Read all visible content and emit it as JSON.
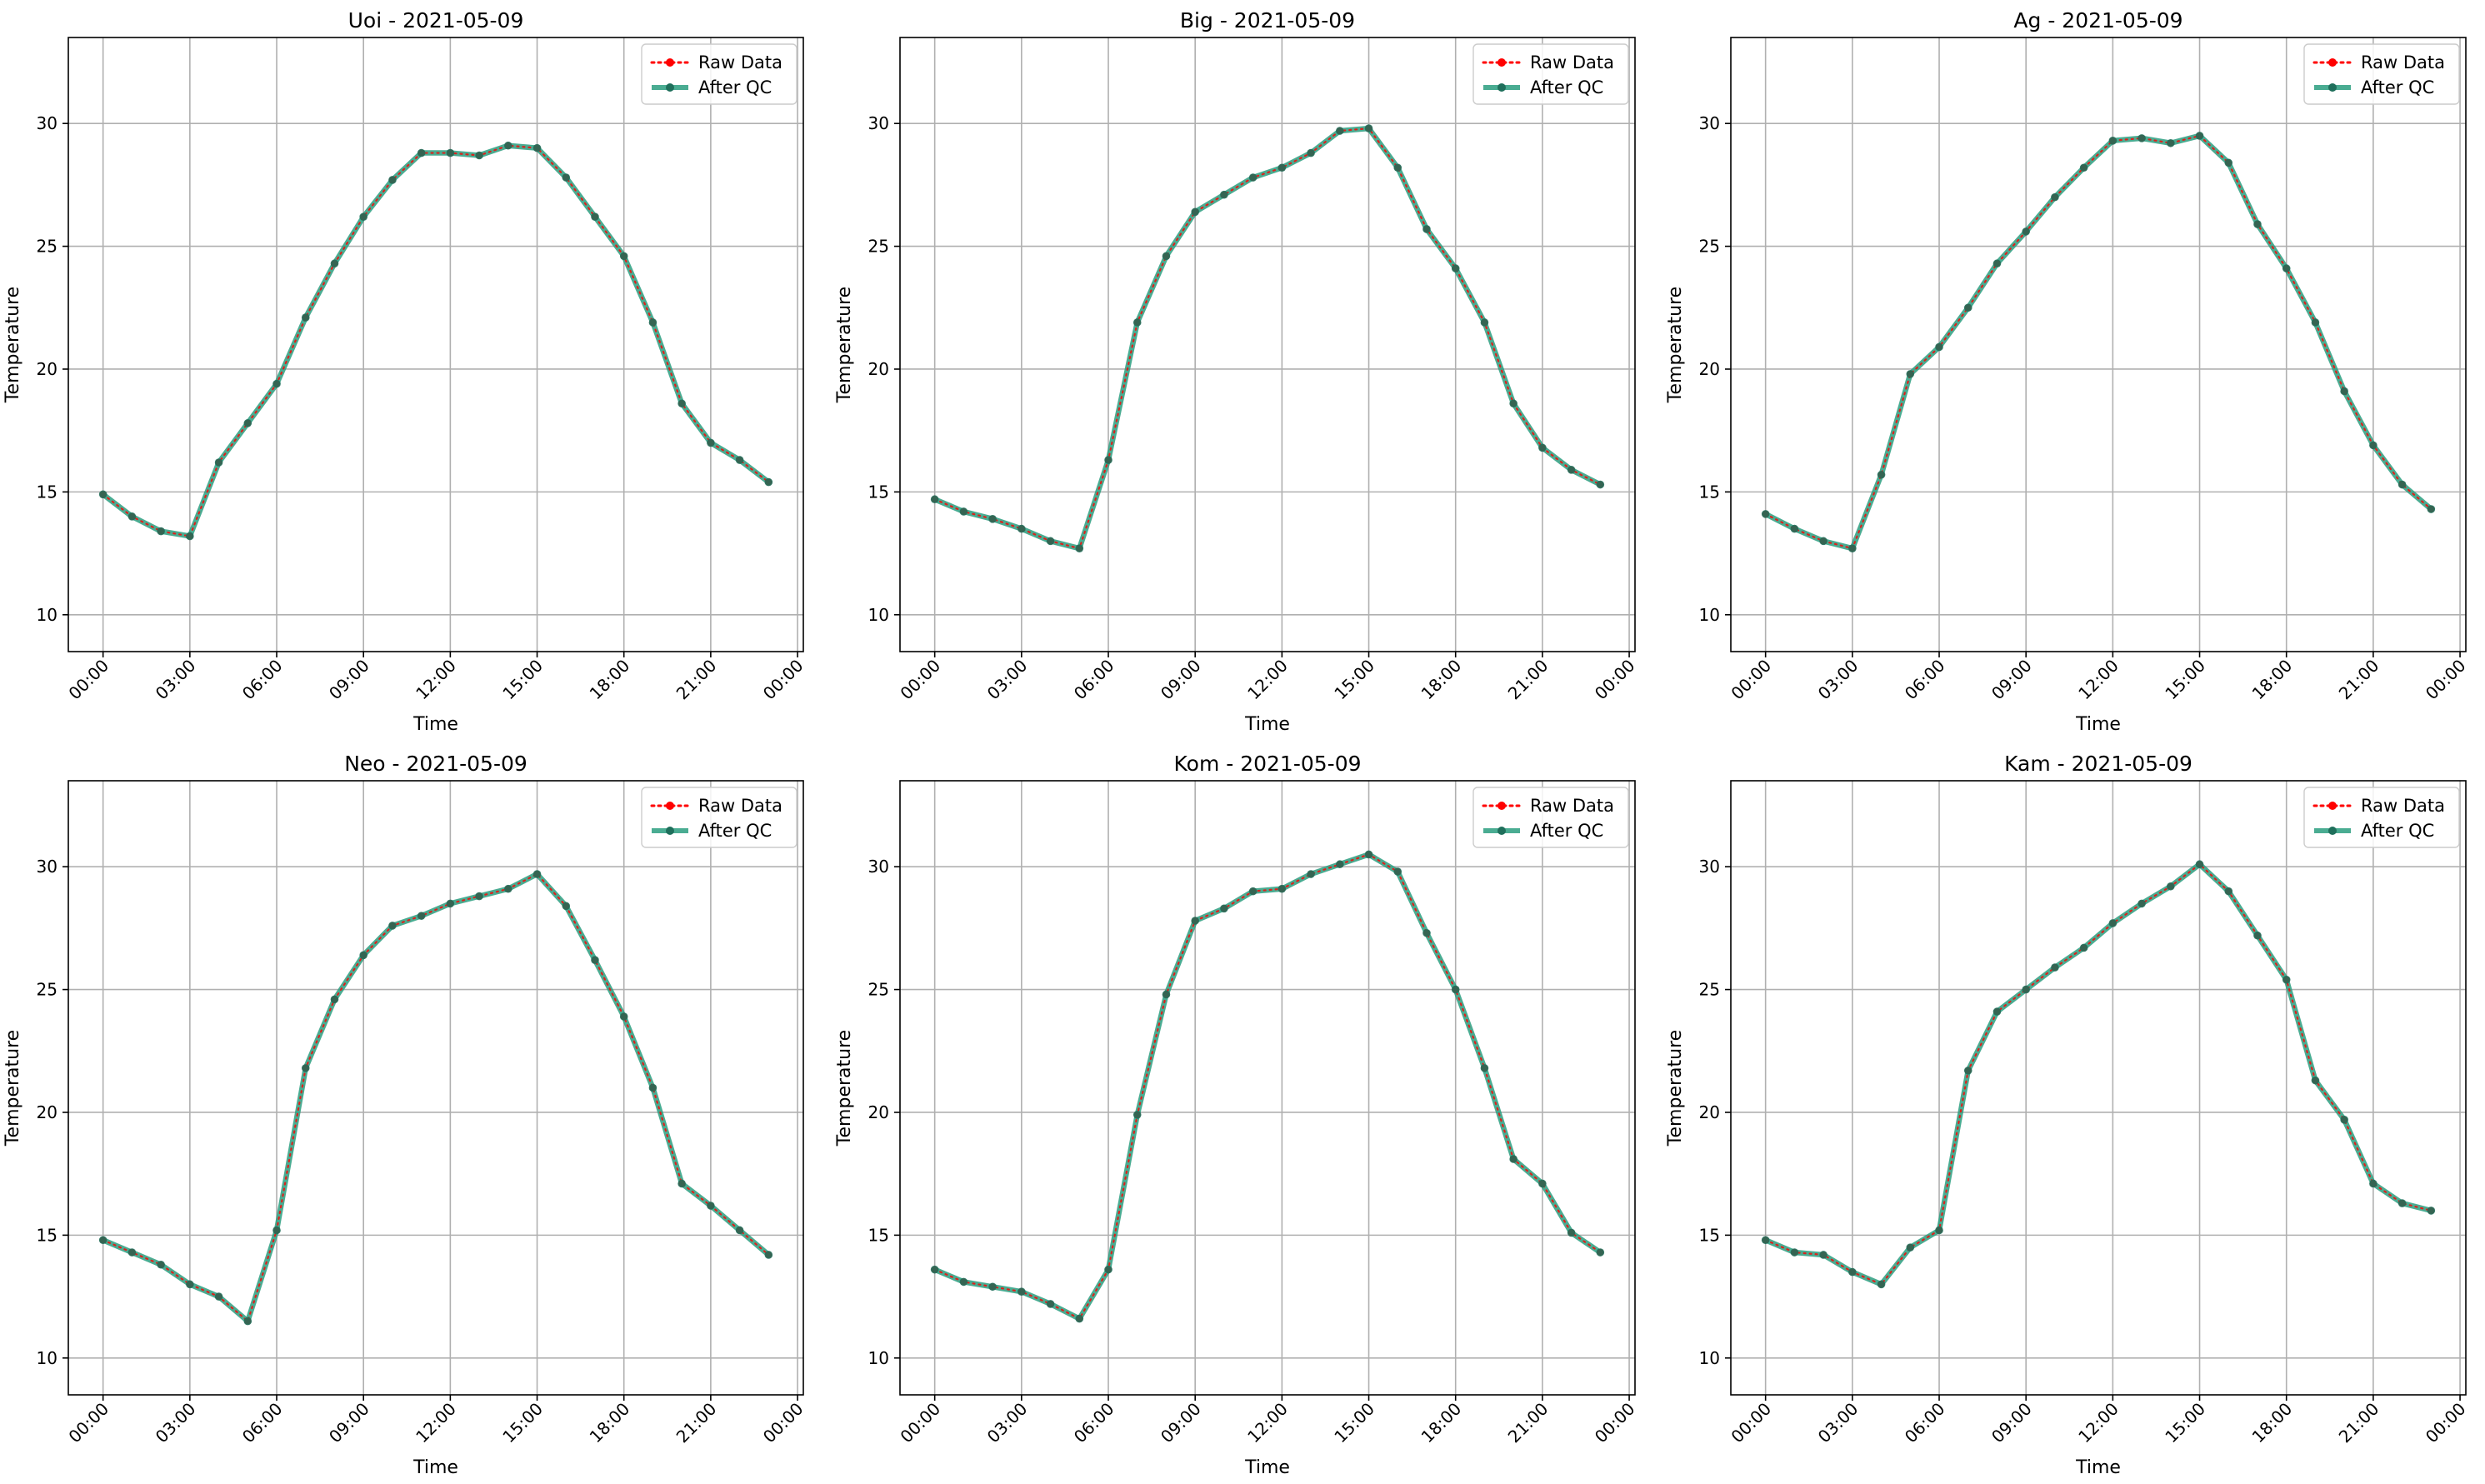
{
  "colors": {
    "raw": "#ff0000",
    "qc": "#2a9d7f",
    "qc_marker": "#1f6f5b",
    "grid": "#b0b0b0",
    "axes": "#000000"
  },
  "chart_data": [
    {
      "type": "line",
      "title": "Uoi - 2021-05-09",
      "xlabel": "Time",
      "ylabel": "Temperature",
      "xticks": [
        "00:00",
        "03:00",
        "06:00",
        "09:00",
        "12:00",
        "15:00",
        "18:00",
        "21:00",
        "00:00"
      ],
      "yticks": [
        10,
        15,
        20,
        25,
        30
      ],
      "xlim_hours": [
        -1.2,
        24.2
      ],
      "ylim": [
        8.5,
        33.5
      ],
      "grid": true,
      "legend": "top-right",
      "x_hours": [
        0,
        1,
        2,
        3,
        4,
        5,
        6,
        7,
        8,
        9,
        10,
        11,
        12,
        13,
        14,
        15,
        16,
        17,
        18,
        19,
        20,
        21,
        22,
        23
      ],
      "series": [
        {
          "name": "Raw Data",
          "values": [
            14.9,
            14.0,
            13.4,
            13.2,
            16.2,
            17.8,
            19.4,
            22.1,
            24.3,
            26.2,
            27.7,
            28.8,
            28.8,
            28.7,
            29.1,
            29.0,
            27.8,
            26.2,
            24.6,
            21.9,
            18.6,
            17.0,
            16.3,
            15.4
          ]
        },
        {
          "name": "After QC",
          "values": [
            14.9,
            14.0,
            13.4,
            13.2,
            16.2,
            17.8,
            19.4,
            22.1,
            24.3,
            26.2,
            27.7,
            28.8,
            28.8,
            28.7,
            29.1,
            29.0,
            27.8,
            26.2,
            24.6,
            21.9,
            18.6,
            17.0,
            16.3,
            15.4
          ]
        }
      ]
    },
    {
      "type": "line",
      "title": "Big - 2021-05-09",
      "xlabel": "Time",
      "ylabel": "Temperature",
      "xticks": [
        "00:00",
        "03:00",
        "06:00",
        "09:00",
        "12:00",
        "15:00",
        "18:00",
        "21:00",
        "00:00"
      ],
      "yticks": [
        10,
        15,
        20,
        25,
        30
      ],
      "xlim_hours": [
        -1.2,
        24.2
      ],
      "ylim": [
        8.5,
        33.5
      ],
      "grid": true,
      "legend": "top-right",
      "x_hours": [
        0,
        1,
        2,
        3,
        4,
        5,
        6,
        7,
        8,
        9,
        10,
        11,
        12,
        13,
        14,
        15,
        16,
        17,
        18,
        19,
        20,
        21,
        22,
        23
      ],
      "series": [
        {
          "name": "Raw Data",
          "values": [
            14.7,
            14.2,
            13.9,
            13.5,
            13.0,
            12.7,
            16.3,
            21.9,
            24.6,
            26.4,
            27.1,
            27.8,
            28.2,
            28.8,
            29.7,
            29.8,
            28.2,
            25.7,
            24.1,
            21.9,
            18.6,
            16.8,
            15.9,
            15.3
          ]
        },
        {
          "name": "After QC",
          "values": [
            14.7,
            14.2,
            13.9,
            13.5,
            13.0,
            12.7,
            16.3,
            21.9,
            24.6,
            26.4,
            27.1,
            27.8,
            28.2,
            28.8,
            29.7,
            29.8,
            28.2,
            25.7,
            24.1,
            21.9,
            18.6,
            16.8,
            15.9,
            15.3
          ]
        }
      ]
    },
    {
      "type": "line",
      "title": "Ag - 2021-05-09",
      "xlabel": "Time",
      "ylabel": "Temperature",
      "xticks": [
        "00:00",
        "03:00",
        "06:00",
        "09:00",
        "12:00",
        "15:00",
        "18:00",
        "21:00",
        "00:00"
      ],
      "yticks": [
        10,
        15,
        20,
        25,
        30
      ],
      "xlim_hours": [
        -1.2,
        24.2
      ],
      "ylim": [
        8.5,
        33.5
      ],
      "grid": true,
      "legend": "top-right",
      "x_hours": [
        0,
        1,
        2,
        3,
        4,
        5,
        6,
        7,
        8,
        9,
        10,
        11,
        12,
        13,
        14,
        15,
        16,
        17,
        18,
        19,
        20,
        21,
        22,
        23
      ],
      "series": [
        {
          "name": "Raw Data",
          "values": [
            14.1,
            13.5,
            13.0,
            12.7,
            15.7,
            19.8,
            20.9,
            22.5,
            24.3,
            25.6,
            27.0,
            28.2,
            29.3,
            29.4,
            29.2,
            29.5,
            28.4,
            25.9,
            24.1,
            21.9,
            19.1,
            16.9,
            15.3,
            14.3
          ]
        },
        {
          "name": "After QC",
          "values": [
            14.1,
            13.5,
            13.0,
            12.7,
            15.7,
            19.8,
            20.9,
            22.5,
            24.3,
            25.6,
            27.0,
            28.2,
            29.3,
            29.4,
            29.2,
            29.5,
            28.4,
            25.9,
            24.1,
            21.9,
            19.1,
            16.9,
            15.3,
            14.3
          ]
        }
      ]
    },
    {
      "type": "line",
      "title": "Neo - 2021-05-09",
      "xlabel": "Time",
      "ylabel": "Temperature",
      "xticks": [
        "00:00",
        "03:00",
        "06:00",
        "09:00",
        "12:00",
        "15:00",
        "18:00",
        "21:00",
        "00:00"
      ],
      "yticks": [
        10,
        15,
        20,
        25,
        30
      ],
      "xlim_hours": [
        -1.2,
        24.2
      ],
      "ylim": [
        8.5,
        33.5
      ],
      "grid": true,
      "legend": "top-right",
      "x_hours": [
        0,
        1,
        2,
        3,
        4,
        5,
        6,
        7,
        8,
        9,
        10,
        11,
        12,
        13,
        14,
        15,
        16,
        17,
        18,
        19,
        20,
        21,
        22,
        23
      ],
      "series": [
        {
          "name": "Raw Data",
          "values": [
            14.8,
            14.3,
            13.8,
            13.0,
            12.5,
            11.5,
            15.2,
            21.8,
            24.6,
            26.4,
            27.6,
            28.0,
            28.5,
            28.8,
            29.1,
            29.7,
            28.4,
            26.2,
            23.9,
            21.0,
            17.1,
            16.2,
            15.2,
            14.2
          ]
        },
        {
          "name": "After QC",
          "values": [
            14.8,
            14.3,
            13.8,
            13.0,
            12.5,
            11.5,
            15.2,
            21.8,
            24.6,
            26.4,
            27.6,
            28.0,
            28.5,
            28.8,
            29.1,
            29.7,
            28.4,
            26.2,
            23.9,
            21.0,
            17.1,
            16.2,
            15.2,
            14.2
          ]
        }
      ]
    },
    {
      "type": "line",
      "title": "Kom - 2021-05-09",
      "xlabel": "Time",
      "ylabel": "Temperature",
      "xticks": [
        "00:00",
        "03:00",
        "06:00",
        "09:00",
        "12:00",
        "15:00",
        "18:00",
        "21:00",
        "00:00"
      ],
      "yticks": [
        10,
        15,
        20,
        25,
        30
      ],
      "xlim_hours": [
        -1.2,
        24.2
      ],
      "ylim": [
        8.5,
        33.5
      ],
      "grid": true,
      "legend": "top-right",
      "x_hours": [
        0,
        1,
        2,
        3,
        4,
        5,
        6,
        7,
        8,
        9,
        10,
        11,
        12,
        13,
        14,
        15,
        16,
        17,
        18,
        19,
        20,
        21,
        22,
        23
      ],
      "series": [
        {
          "name": "Raw Data",
          "values": [
            13.6,
            13.1,
            12.9,
            12.7,
            12.2,
            11.6,
            13.6,
            19.9,
            24.8,
            27.8,
            28.3,
            29.0,
            29.1,
            29.7,
            30.1,
            30.5,
            29.8,
            27.3,
            25.0,
            21.8,
            18.1,
            17.1,
            15.1,
            14.3
          ]
        },
        {
          "name": "After QC",
          "values": [
            13.6,
            13.1,
            12.9,
            12.7,
            12.2,
            11.6,
            13.6,
            19.9,
            24.8,
            27.8,
            28.3,
            29.0,
            29.1,
            29.7,
            30.1,
            30.5,
            29.8,
            27.3,
            25.0,
            21.8,
            18.1,
            17.1,
            15.1,
            14.3
          ]
        }
      ]
    },
    {
      "type": "line",
      "title": "Kam - 2021-05-09",
      "xlabel": "Time",
      "ylabel": "Temperature",
      "xticks": [
        "00:00",
        "03:00",
        "06:00",
        "09:00",
        "12:00",
        "15:00",
        "18:00",
        "21:00",
        "00:00"
      ],
      "yticks": [
        10,
        15,
        20,
        25,
        30
      ],
      "xlim_hours": [
        -1.2,
        24.2
      ],
      "ylim": [
        8.5,
        33.5
      ],
      "grid": true,
      "legend": "top-right",
      "x_hours": [
        0,
        1,
        2,
        3,
        4,
        5,
        6,
        7,
        8,
        9,
        10,
        11,
        12,
        13,
        14,
        15,
        16,
        17,
        18,
        19,
        20,
        21,
        22,
        23
      ],
      "series": [
        {
          "name": "Raw Data",
          "values": [
            14.8,
            14.3,
            14.2,
            13.5,
            13.0,
            14.5,
            15.2,
            21.7,
            24.1,
            25.0,
            25.9,
            26.7,
            27.7,
            28.5,
            29.2,
            30.1,
            29.0,
            27.2,
            25.4,
            21.3,
            19.7,
            17.1,
            16.3,
            16.0
          ]
        },
        {
          "name": "After QC",
          "values": [
            14.8,
            14.3,
            14.2,
            13.5,
            13.0,
            14.5,
            15.2,
            21.7,
            24.1,
            25.0,
            25.9,
            26.7,
            27.7,
            28.5,
            29.2,
            30.1,
            29.0,
            27.2,
            25.4,
            21.3,
            19.7,
            17.1,
            16.3,
            16.0
          ]
        }
      ]
    }
  ]
}
